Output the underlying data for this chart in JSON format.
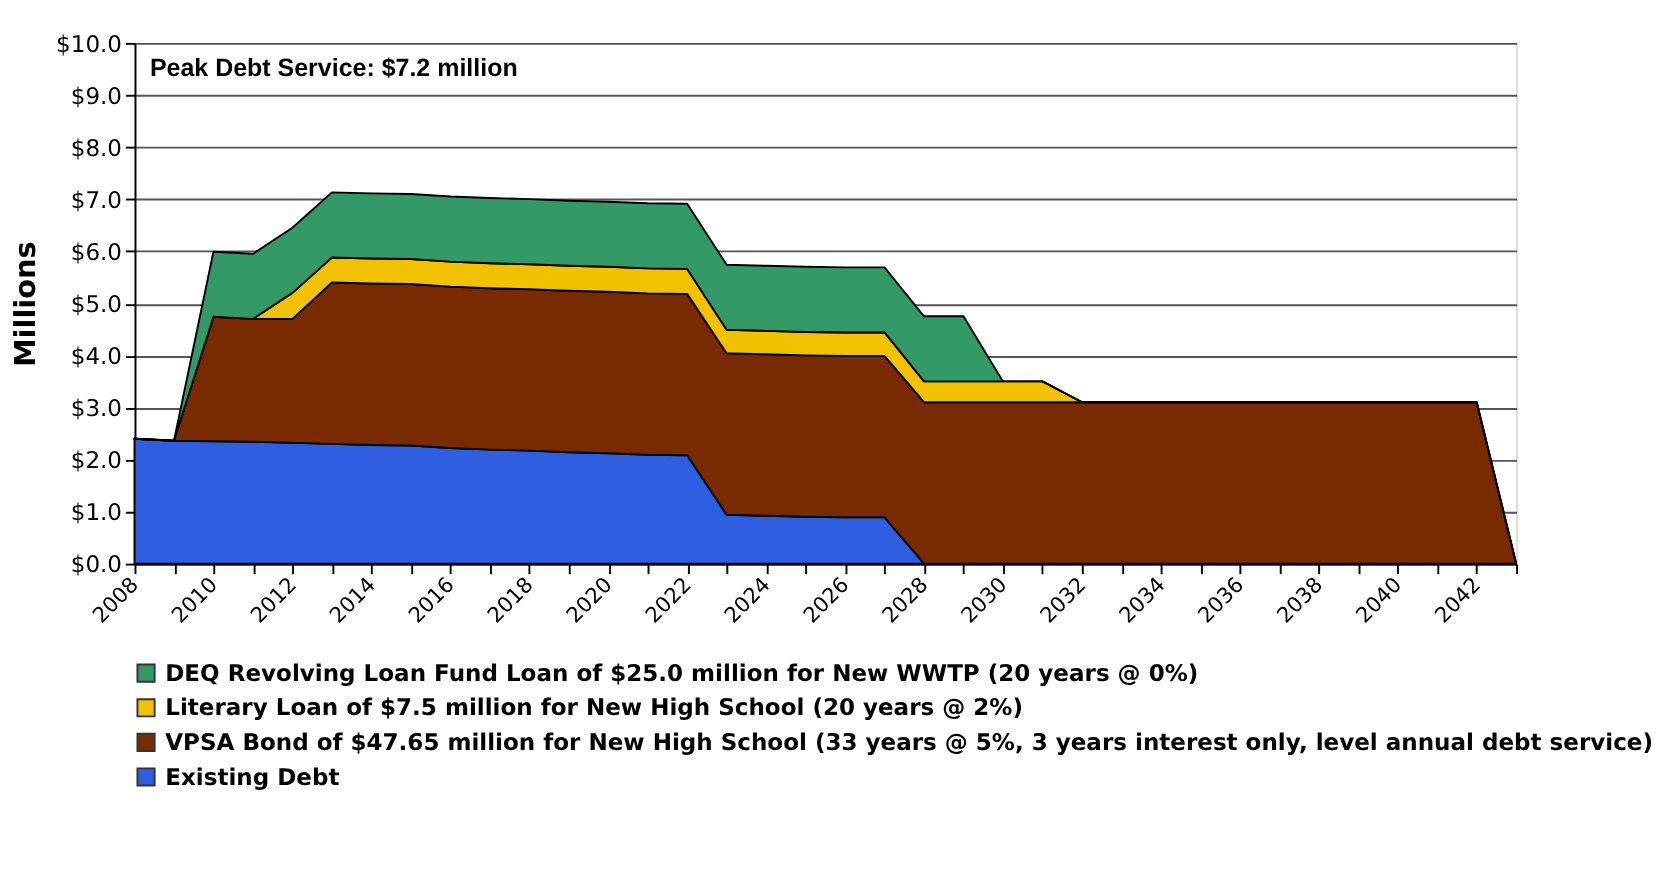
{
  "chart_data": {
    "type": "area",
    "stacked": true,
    "ylabel": "Millions",
    "annotations": [
      "Peak Debt Service: $7.2 million"
    ],
    "x": [
      2008,
      2009,
      2010,
      2011,
      2012,
      2013,
      2014,
      2015,
      2016,
      2017,
      2018,
      2019,
      2020,
      2021,
      2022,
      2023,
      2024,
      2025,
      2026,
      2027,
      2028,
      2029,
      2030,
      2031,
      2032,
      2033,
      2034,
      2035,
      2036,
      2037,
      2038,
      2039,
      2040,
      2041,
      2042,
      2043
    ],
    "xlim": [
      2008,
      2043
    ],
    "xticks": [
      2008,
      {
        "value": 2009,
        "label": null
      },
      2010,
      {
        "value": 2011,
        "label": null
      },
      2012,
      {
        "value": 2013,
        "label": null
      },
      2014,
      {
        "value": 2015,
        "label": null
      },
      2016,
      {
        "value": 2017,
        "label": null
      },
      2018,
      {
        "value": 2019,
        "label": null
      },
      2020,
      {
        "value": 2021,
        "label": null
      },
      2022,
      {
        "value": 2023,
        "label": null
      },
      2024,
      {
        "value": 2025,
        "label": null
      },
      2026,
      {
        "value": 2027,
        "label": null
      },
      2028,
      {
        "value": 2029,
        "label": null
      },
      2030,
      {
        "value": 2031,
        "label": null
      },
      2032,
      {
        "value": 2033,
        "label": null
      },
      2034,
      {
        "value": 2035,
        "label": null
      },
      2036,
      {
        "value": 2037,
        "label": null
      },
      2038,
      {
        "value": 2039,
        "label": null
      },
      2040,
      {
        "value": 2041,
        "label": null
      },
      2042,
      {
        "value": 2043,
        "label": null
      }
    ],
    "ylim": [
      0,
      10
    ],
    "yticks": [
      {
        "value": 0,
        "label": "$0.0"
      },
      {
        "value": 1,
        "label": "$1.0"
      },
      {
        "value": 2,
        "label": "$2.0"
      },
      {
        "value": 3,
        "label": "$3.0"
      },
      {
        "value": 4,
        "label": "$4.0"
      },
      {
        "value": 5,
        "label": "$5.0"
      },
      {
        "value": 6,
        "label": "$6.0"
      },
      {
        "value": 7,
        "label": "$7.0"
      },
      {
        "value": 8,
        "label": "$8.0"
      },
      {
        "value": 9,
        "label": "$9.0"
      },
      {
        "value": 10,
        "label": "$10.0"
      }
    ],
    "grid": "y",
    "legend": "bottom",
    "series": [
      {
        "name": "Existing Debt",
        "color": "#2f5fe0",
        "values": [
          2.4,
          2.36,
          2.35,
          2.34,
          2.32,
          2.3,
          2.28,
          2.27,
          2.22,
          2.19,
          2.17,
          2.14,
          2.12,
          2.09,
          2.08,
          0.94,
          0.92,
          0.9,
          0.89,
          0.89,
          0,
          0,
          0,
          0,
          0,
          0,
          0,
          0,
          0,
          0,
          0,
          0,
          0,
          0,
          0,
          0
        ]
      },
      {
        "name": "VPSA Bond of $47.65 million for New High School (33 years @ 5%, 3 years interest only, level annual debt service)",
        "color": "#7a2a00",
        "values": [
          0,
          0,
          2.39,
          2.36,
          2.38,
          3.1,
          3.1,
          3.1,
          3.1,
          3.1,
          3.1,
          3.1,
          3.1,
          3.1,
          3.1,
          3.1,
          3.1,
          3.1,
          3.1,
          3.1,
          3.1,
          3.1,
          3.1,
          3.1,
          3.1,
          3.1,
          3.1,
          3.1,
          3.1,
          3.1,
          3.1,
          3.1,
          3.1,
          3.1,
          3.1,
          0
        ]
      },
      {
        "name": "Literary Loan of $7.5 million for New High School (20 years @ 2%)",
        "color": "#f2c200",
        "values": [
          0,
          0,
          0,
          0,
          0.5,
          0.48,
          0.48,
          0.48,
          0.48,
          0.48,
          0.48,
          0.48,
          0.48,
          0.48,
          0.48,
          0.45,
          0.45,
          0.45,
          0.45,
          0.45,
          0.4,
          0.4,
          0.4,
          0.4,
          0,
          0,
          0,
          0,
          0,
          0,
          0,
          0,
          0,
          0,
          0,
          0
        ]
      },
      {
        "name": "DEQ Revolving Loan Fund Loan of $25.0 million for New WWTP (20 years @ 0%)",
        "color": "#339966",
        "values": [
          0,
          0,
          1.25,
          1.25,
          1.25,
          1.25,
          1.25,
          1.25,
          1.25,
          1.25,
          1.25,
          1.25,
          1.25,
          1.25,
          1.25,
          1.25,
          1.25,
          1.25,
          1.25,
          1.25,
          1.25,
          1.25,
          0,
          0,
          0,
          0,
          0,
          0,
          0,
          0,
          0,
          0,
          0,
          0,
          0,
          0
        ]
      }
    ]
  }
}
